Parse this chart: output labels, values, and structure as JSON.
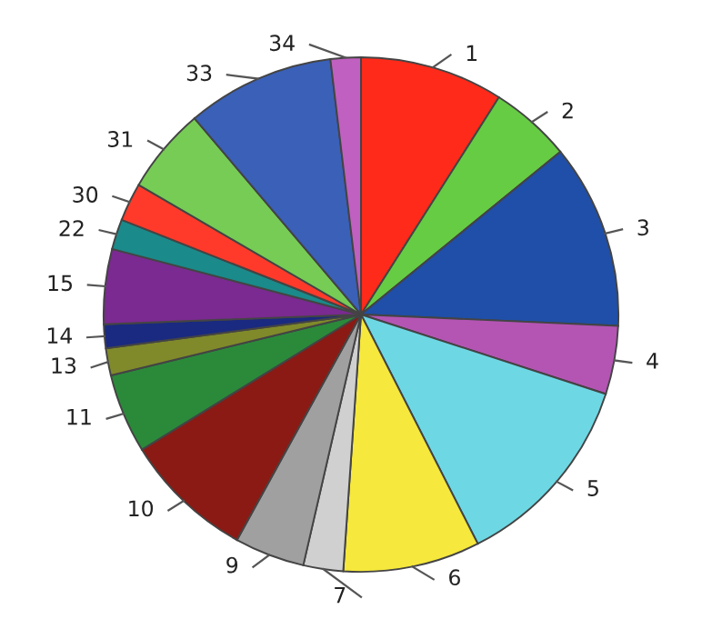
{
  "chart_data": {
    "type": "pie",
    "categories": [
      "1",
      "2",
      "3",
      "4",
      "5",
      "6",
      "7",
      "9",
      "10",
      "11",
      "13",
      "14",
      "15",
      "22",
      "30",
      "31",
      "33",
      "34"
    ],
    "values": [
      9.0,
      5.1,
      11.6,
      4.3,
      12.5,
      8.6,
      2.5,
      4.4,
      8.2,
      5.0,
      1.7,
      1.5,
      4.7,
      1.9,
      2.4,
      5.4,
      9.3,
      1.9
    ],
    "colors": [
      "#ff2a1a",
      "#66cc44",
      "#1f4fa8",
      "#b455b4",
      "#6dd8e4",
      "#f6e83c",
      "#d0d0d0",
      "#a0a0a0",
      "#8b1a14",
      "#2a8a3a",
      "#808a2a",
      "#1a2a80",
      "#7a2a90",
      "#1a8a8a",
      "#ff3a2a",
      "#77cc55",
      "#3a60b8",
      "#c060c0"
    ],
    "legend": false
  }
}
